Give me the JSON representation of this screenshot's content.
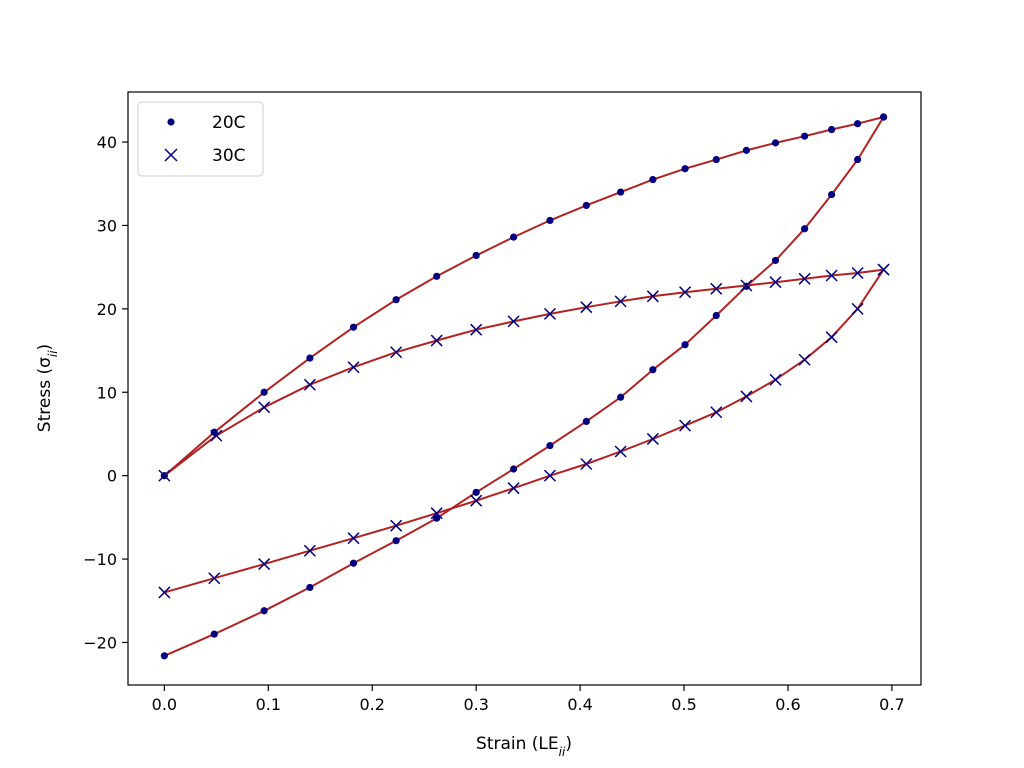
{
  "chart_data": {
    "type": "line",
    "title": "",
    "xlabel": "Strain (LE",
    "xlabel_sub": "ii",
    "xlabel_close": ")",
    "ylabel": "Stress (σ",
    "ylabel_sub": "ii",
    "ylabel_close": ")",
    "xlim": [
      -0.035,
      0.728
    ],
    "ylim": [
      -25.1,
      46.0
    ],
    "xticks": [
      0.0,
      0.1,
      0.2,
      0.3,
      0.4,
      0.5,
      0.6,
      0.7
    ],
    "xtick_labels": [
      "0.0",
      "0.1",
      "0.2",
      "0.3",
      "0.4",
      "0.5",
      "0.6",
      "0.7"
    ],
    "yticks": [
      -20,
      -10,
      0,
      10,
      20,
      30,
      40
    ],
    "ytick_labels": [
      "−20",
      "−10",
      "0",
      "10",
      "20",
      "30",
      "40"
    ],
    "grid": false,
    "legend_position": "top-left",
    "line_color": "#b22222",
    "marker_color": "#000080",
    "series": [
      {
        "name": "20C",
        "marker": "dot",
        "loading": {
          "x": [
            0.0,
            0.048,
            0.096,
            0.14,
            0.182,
            0.223,
            0.262,
            0.3,
            0.336,
            0.371,
            0.406,
            0.439,
            0.47,
            0.501,
            0.531,
            0.56,
            0.588,
            0.616,
            0.642,
            0.667,
            0.692
          ],
          "y": [
            0.0,
            5.2,
            10.0,
            14.1,
            17.8,
            21.1,
            23.9,
            26.4,
            28.6,
            30.6,
            32.4,
            34.0,
            35.5,
            36.8,
            37.9,
            39.0,
            39.9,
            40.7,
            41.5,
            42.2,
            43.0
          ]
        },
        "unloading": {
          "x": [
            0.692,
            0.667,
            0.642,
            0.616,
            0.588,
            0.56,
            0.531,
            0.501,
            0.47,
            0.439,
            0.406,
            0.371,
            0.336,
            0.3,
            0.262,
            0.223,
            0.182,
            0.14,
            0.096,
            0.048,
            0.0
          ],
          "y": [
            43.0,
            37.9,
            33.7,
            29.6,
            25.8,
            22.7,
            19.2,
            15.7,
            12.7,
            9.4,
            6.5,
            3.6,
            0.8,
            -2.0,
            -5.1,
            -7.8,
            -10.5,
            -13.4,
            -16.2,
            -19.0,
            -21.6
          ]
        }
      },
      {
        "name": "30C",
        "marker": "x",
        "loading": {
          "x": [
            0.0,
            0.05,
            0.096,
            0.14,
            0.182,
            0.223,
            0.262,
            0.3,
            0.336,
            0.371,
            0.406,
            0.439,
            0.47,
            0.501,
            0.531,
            0.56,
            0.588,
            0.616,
            0.642,
            0.667,
            0.692
          ],
          "y": [
            0.0,
            4.8,
            8.2,
            10.9,
            13.0,
            14.8,
            16.2,
            17.5,
            18.5,
            19.4,
            20.2,
            20.9,
            21.5,
            22.0,
            22.4,
            22.8,
            23.2,
            23.6,
            24.0,
            24.3,
            24.7
          ]
        },
        "unloading": {
          "x": [
            0.692,
            0.667,
            0.642,
            0.616,
            0.588,
            0.56,
            0.531,
            0.501,
            0.47,
            0.439,
            0.406,
            0.371,
            0.336,
            0.3,
            0.262,
            0.223,
            0.182,
            0.14,
            0.096,
            0.048,
            0.0
          ],
          "y": [
            24.7,
            20.0,
            16.6,
            13.9,
            11.5,
            9.5,
            7.6,
            6.0,
            4.4,
            2.9,
            1.4,
            0.0,
            -1.5,
            -3.0,
            -4.5,
            -6.0,
            -7.5,
            -9.0,
            -10.6,
            -12.3,
            -14.0
          ]
        }
      }
    ]
  }
}
